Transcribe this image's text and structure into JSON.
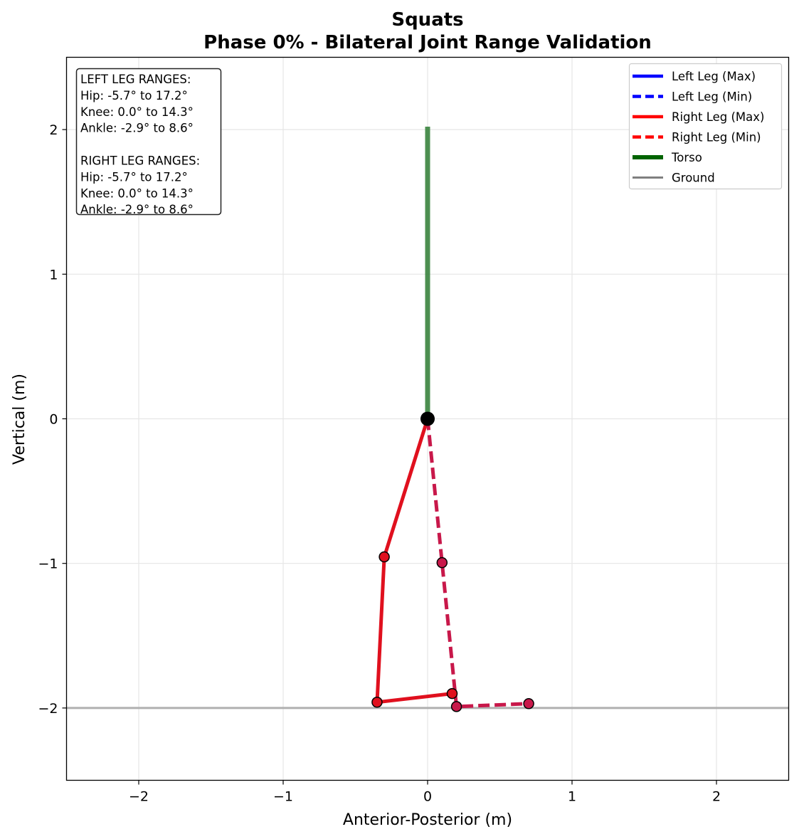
{
  "chart_data": {
    "type": "line",
    "title": "Squats",
    "subtitle": "Phase 0% - Bilateral Joint Range Validation",
    "xlabel": "Anterior-Posterior (m)",
    "ylabel": "Vertical (m)",
    "xlim": [
      -2.5,
      2.5
    ],
    "ylim": [
      -2.5,
      2.5
    ],
    "x_ticks": [
      -2,
      -1,
      0,
      1,
      2
    ],
    "y_ticks": [
      -2,
      -1,
      0,
      1,
      2
    ],
    "x_tick_labels": [
      "−2",
      "−1",
      "0",
      "1",
      "2"
    ],
    "y_tick_labels": [
      "−2",
      "−1",
      "0",
      "1",
      "2"
    ],
    "grid": true,
    "legend_position": "top-right",
    "info_box_position": "top-left",
    "info_lines": [
      "LEFT LEG RANGES:",
      "Hip: -5.7° to 17.2°",
      "Knee: 0.0° to 14.3°",
      "Ankle: -2.9° to 8.6°",
      "",
      "RIGHT LEG RANGES:",
      "Hip: -5.7° to 17.2°",
      "Knee: 0.0° to 14.3°",
      "Ankle: -2.9° to 8.6°"
    ],
    "legend": [
      {
        "label": "Left Leg (Max)",
        "color": "#0000ff",
        "style": "solid"
      },
      {
        "label": "Left Leg (Min)",
        "color": "#0000ff",
        "style": "dashed"
      },
      {
        "label": "Right Leg (Max)",
        "color": "#ff0000",
        "style": "solid"
      },
      {
        "label": "Right Leg (Min)",
        "color": "#ff0000",
        "style": "dashed"
      },
      {
        "label": "Torso",
        "color": "#006400",
        "style": "thick"
      },
      {
        "label": "Ground",
        "color": "#808080",
        "style": "solid"
      }
    ],
    "series": [
      {
        "name": "Ground",
        "color": "#b0b0b0",
        "style": "solid",
        "x": [
          -2.5,
          2.5
        ],
        "y": [
          -2.0,
          -2.0
        ]
      },
      {
        "name": "Torso",
        "color": "#2e7d32",
        "style": "thick",
        "x": [
          0.0,
          0.0
        ],
        "y": [
          0.0,
          2.02
        ]
      },
      {
        "name": "Left Leg (Max)",
        "color": "#0000ff",
        "style": "solid",
        "x": [
          0.0,
          -0.3,
          -0.35,
          0.17
        ],
        "y": [
          0.0,
          -0.955,
          -1.96,
          -1.9
        ],
        "joint_points": 3
      },
      {
        "name": "Left Leg (Min)",
        "color": "#0000ff",
        "style": "dashed",
        "x": [
          0.0,
          0.1,
          0.2,
          0.7
        ],
        "y": [
          0.0,
          -0.995,
          -1.99,
          -1.97
        ],
        "joint_points": 3
      },
      {
        "name": "Right Leg (Max)",
        "color": "#e0101e",
        "style": "solid",
        "x": [
          0.0,
          -0.3,
          -0.35,
          0.17
        ],
        "y": [
          0.0,
          -0.955,
          -1.96,
          -1.9
        ],
        "joint_points": 3
      },
      {
        "name": "Right Leg (Min)",
        "color": "#c8184a",
        "style": "dashed",
        "x": [
          0.0,
          0.1,
          0.2,
          0.7
        ],
        "y": [
          0.0,
          -0.995,
          -1.99,
          -1.97
        ],
        "joint_points": 3
      }
    ],
    "hip_point": {
      "x": 0.0,
      "y": 0.0,
      "color": "#000000"
    }
  }
}
